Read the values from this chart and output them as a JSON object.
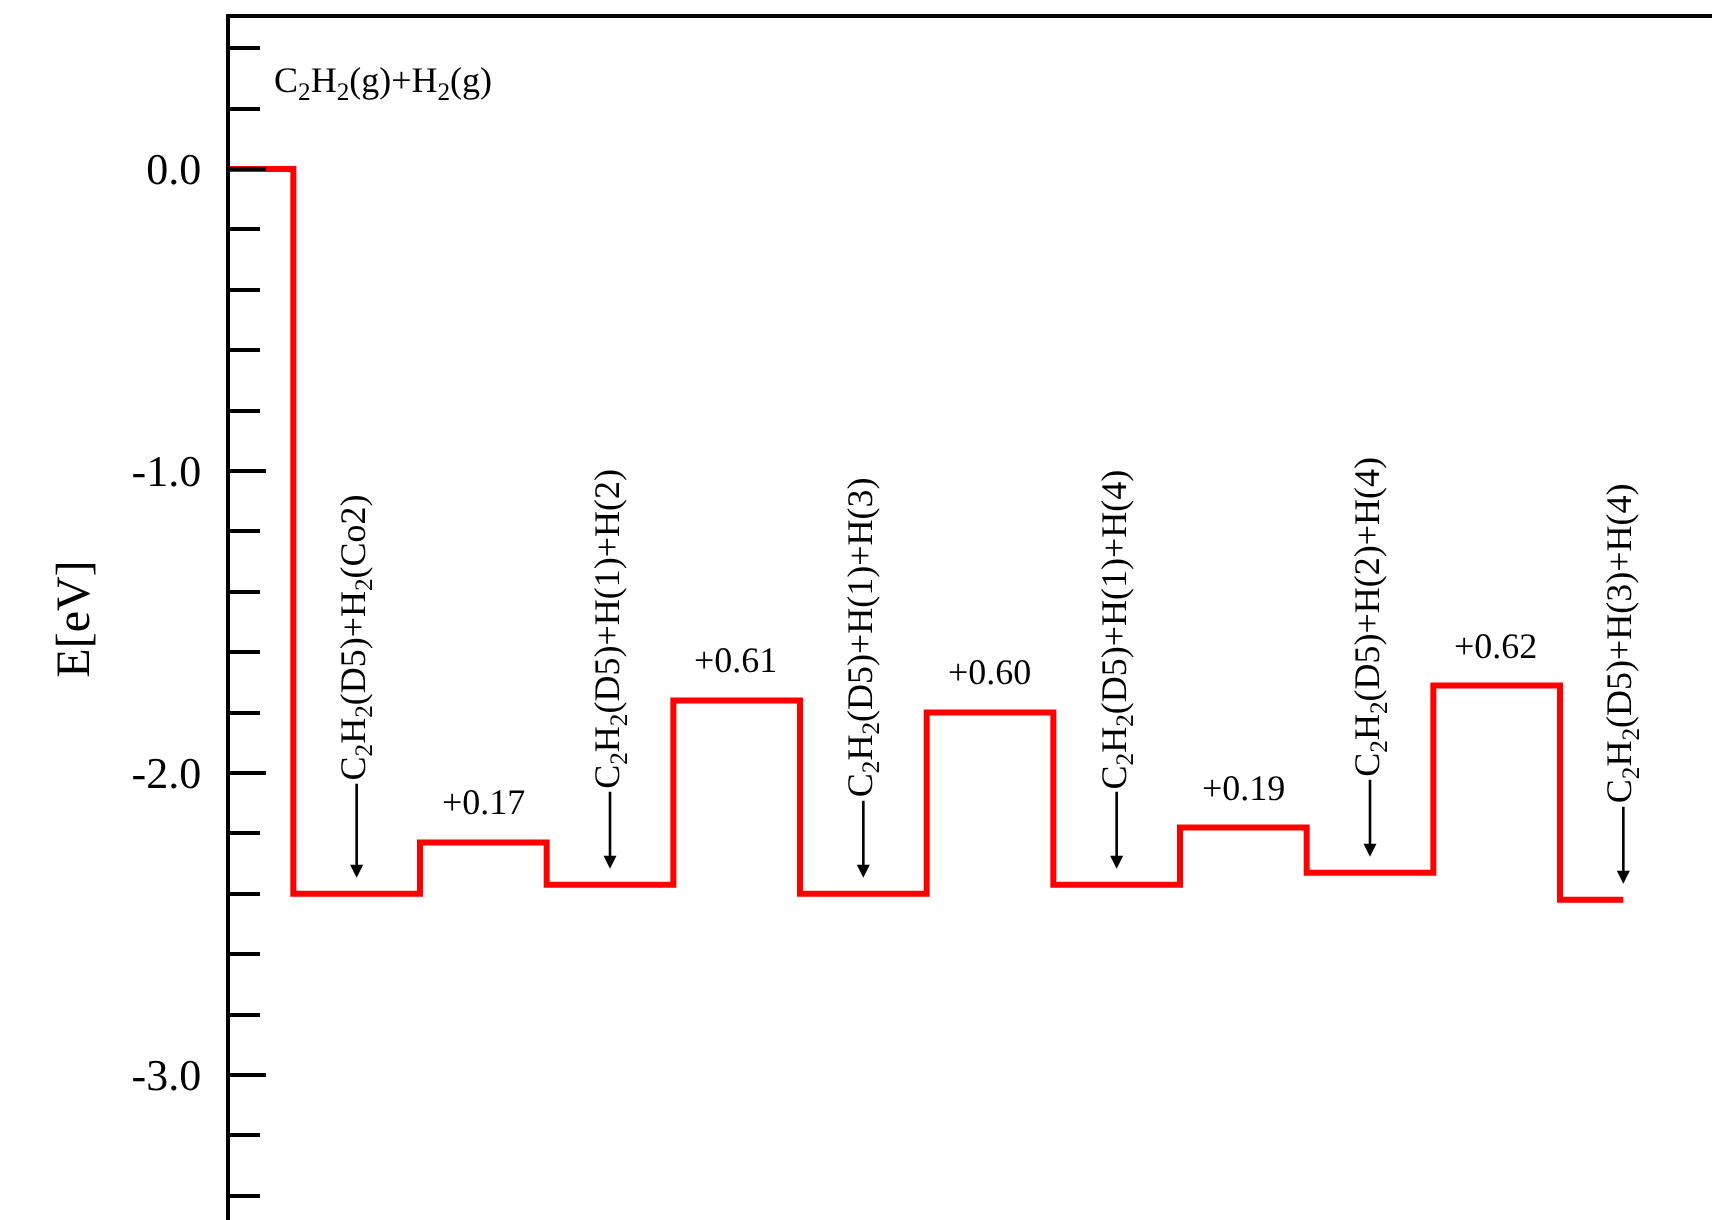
{
  "chart_data": {
    "type": "step",
    "ylabel": "E[eV]",
    "categories": [
      null,
      null,
      null,
      null,
      null,
      null,
      null,
      null,
      null,
      null,
      null,
      null
    ],
    "series": [
      {
        "color": "#ff0000",
        "values": [
          0,
          -2.4,
          -2.23,
          -2.37,
          -1.76,
          -2.4,
          -1.8,
          -2.37,
          -2.18,
          -2.33,
          -1.71,
          -2.42
        ]
      }
    ],
    "ylim": [
      -3.48,
      0.5
    ],
    "yticks": [
      {
        "value": 0.4,
        "label": null
      },
      {
        "value": 0.2,
        "label": null
      },
      {
        "value": 0,
        "label": "0.0"
      },
      {
        "value": -0.2,
        "label": null
      },
      {
        "value": -0.4,
        "label": null
      },
      {
        "value": -0.6,
        "label": null
      },
      {
        "value": -0.8,
        "label": null
      },
      {
        "value": -1,
        "label": "-1.0"
      },
      {
        "value": -1.2,
        "label": null
      },
      {
        "value": -1.4,
        "label": null
      },
      {
        "value": -1.6,
        "label": null
      },
      {
        "value": -1.8,
        "label": null
      },
      {
        "value": -2,
        "label": "-2.0"
      },
      {
        "value": -2.2,
        "label": null
      },
      {
        "value": -2.4,
        "label": null
      },
      {
        "value": -2.6,
        "label": null
      },
      {
        "value": -2.8,
        "label": null
      },
      {
        "value": -3,
        "label": "-3.0"
      },
      {
        "value": -3.2,
        "label": null
      },
      {
        "value": -3.4,
        "label": null
      }
    ],
    "tick_labels": "y",
    "grid": false,
    "marker": "none",
    "line_style": "solid",
    "annotations": [
      "C$_{2}$H$_{2}$(g)+H$_{2}$(g)",
      "C$_{2}$H$_{2}$(D5)+H$_{2}$(Co2)",
      "+0.17",
      "C$_{2}$H$_{2}$(D5)+H(1)+H(2)",
      "+0.61",
      "C$_{2}$H$_{2}$(D5)+H(1)+H(3)",
      "+0.60",
      "C$_{2}$H$_{2}$(D5)+H(1)+H(4)",
      "+0.19",
      "C$_{2}$H$_{2}$(D5)+H(2)+H(4)",
      "+0.62",
      "C$_{2}$H$_{2}$(D5)+H(3)+H(4)"
    ]
  }
}
